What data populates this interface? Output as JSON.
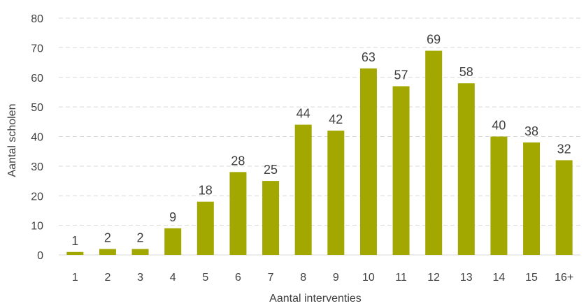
{
  "chart_data": {
    "type": "bar",
    "categories": [
      "1",
      "2",
      "3",
      "4",
      "5",
      "6",
      "7",
      "8",
      "9",
      "10",
      "11",
      "12",
      "13",
      "14",
      "15",
      "16+"
    ],
    "values": [
      1,
      2,
      2,
      9,
      18,
      28,
      25,
      44,
      42,
      63,
      57,
      69,
      58,
      40,
      38,
      32
    ],
    "title": "",
    "xlabel": "Aantal interventies",
    "ylabel": "Aantal scholen",
    "ylim": [
      0,
      80
    ],
    "yticks": [
      "0",
      "10",
      "20",
      "30",
      "40",
      "50",
      "60",
      "70",
      "80"
    ],
    "grid": true,
    "legend": "none",
    "bar_color": "#a3a800"
  }
}
